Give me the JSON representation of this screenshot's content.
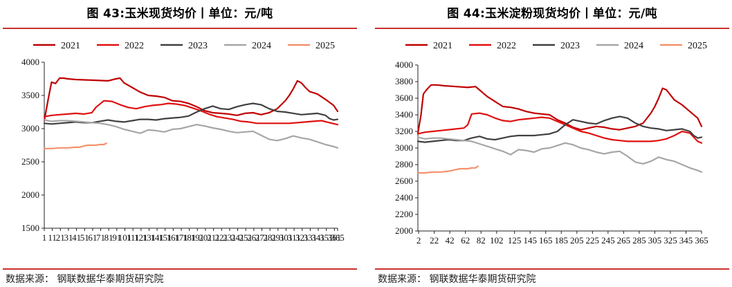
{
  "charts": [
    {
      "title": "图 43:玉米现货均价丨单位：元/吨",
      "source": "数据来源：  钢联数据华泰期货研究院",
      "chart_data": {
        "type": "line",
        "title": "图 43:玉米现货均价丨单位：元/吨",
        "xlabel": "",
        "ylabel": "",
        "xlim": [
          1,
          365
        ],
        "ylim": [
          1500,
          4000
        ],
        "y_ticks": [
          1500,
          2000,
          2500,
          3000,
          3500,
          4000
        ],
        "x_ticks": [
          1,
          11,
          21,
          31,
          41,
          51,
          61,
          71,
          81,
          91,
          101,
          111,
          121,
          131,
          141,
          151,
          161,
          171,
          181,
          191,
          201,
          211,
          221,
          231,
          241,
          251,
          261,
          271,
          281,
          291,
          301,
          311,
          321,
          331,
          341,
          351,
          361,
          365
        ],
        "x_tick_labels_note": "overlapping day-of-year labels (illegible in source)",
        "series": [
          {
            "name": "2021",
            "color": "#c00000",
            "x": [
              1,
              6,
              10,
              15,
              20,
              25,
              30,
              40,
              60,
              80,
              90,
              95,
              100,
              110,
              120,
              130,
              140,
              150,
              160,
              170,
              180,
              190,
              200,
              210,
              220,
              230,
              240,
              250,
              260,
              270,
              280,
              290,
              300,
              305,
              310,
              315,
              320,
              325,
              330,
              340,
              350,
              360,
              365
            ],
            "y": [
              3120,
              3450,
              3700,
              3680,
              3760,
              3760,
              3750,
              3740,
              3730,
              3720,
              3750,
              3760,
              3690,
              3620,
              3550,
              3500,
              3490,
              3470,
              3420,
              3410,
              3380,
              3330,
              3270,
              3240,
              3230,
              3220,
              3200,
              3230,
              3240,
              3210,
              3240,
              3300,
              3420,
              3500,
              3600,
              3720,
              3690,
              3620,
              3560,
              3520,
              3440,
              3350,
              3260
            ]
          },
          {
            "name": "2022",
            "color": "#e01010",
            "x": [
              1,
              10,
              20,
              30,
              40,
              50,
              60,
              65,
              75,
              85,
              95,
              105,
              115,
              125,
              135,
              145,
              155,
              165,
              175,
              185,
              195,
              205,
              215,
              225,
              235,
              245,
              255,
              265,
              275,
              285,
              295,
              305,
              315,
              325,
              335,
              345,
              355,
              365
            ],
            "y": [
              3180,
              3200,
              3210,
              3220,
              3230,
              3220,
              3240,
              3320,
              3420,
              3410,
              3360,
              3320,
              3300,
              3330,
              3350,
              3360,
              3380,
              3370,
              3350,
              3310,
              3270,
              3220,
              3180,
              3160,
              3140,
              3110,
              3100,
              3080,
              3080,
              3080,
              3080,
              3080,
              3090,
              3100,
              3110,
              3120,
              3090,
              3060
            ]
          },
          {
            "name": "2023",
            "color": "#404040",
            "x": [
              1,
              10,
              20,
              30,
              40,
              50,
              60,
              70,
              80,
              90,
              100,
              110,
              120,
              130,
              140,
              150,
              160,
              170,
              180,
              190,
              200,
              210,
              220,
              230,
              240,
              250,
              260,
              270,
              280,
              290,
              300,
              310,
              320,
              330,
              340,
              350,
              355,
              360,
              365
            ],
            "y": [
              3080,
              3070,
              3080,
              3090,
              3100,
              3090,
              3090,
              3110,
              3130,
              3110,
              3100,
              3120,
              3140,
              3140,
              3130,
              3150,
              3160,
              3170,
              3190,
              3250,
              3300,
              3340,
              3300,
              3290,
              3330,
              3360,
              3380,
              3360,
              3300,
              3260,
              3250,
              3230,
              3210,
              3220,
              3230,
              3200,
              3150,
              3130,
              3140
            ]
          },
          {
            "name": "2024",
            "color": "#a6a6a6",
            "x": [
              1,
              10,
              20,
              30,
              40,
              50,
              60,
              70,
              80,
              90,
              100,
              110,
              120,
              130,
              140,
              150,
              160,
              170,
              180,
              190,
              200,
              210,
              220,
              230,
              240,
              250,
              260,
              270,
              280,
              290,
              300,
              310,
              320,
              330,
              340,
              350,
              360,
              365
            ],
            "y": [
              3130,
              3110,
              3120,
              3120,
              3110,
              3100,
              3090,
              3080,
              3060,
              3030,
              2990,
              2960,
              2930,
              2980,
              2970,
              2950,
              2990,
              3000,
              3030,
              3060,
              3040,
              3010,
              2990,
              2960,
              2940,
              2950,
              2960,
              2900,
              2840,
              2820,
              2850,
              2890,
              2860,
              2840,
              2800,
              2760,
              2730,
              2710
            ]
          },
          {
            "name": "2025",
            "color": "#f4916b",
            "x": [
              1,
              10,
              20,
              30,
              40,
              45,
              50,
              55,
              60,
              65,
              70,
              75,
              78
            ],
            "y": [
              2700,
              2700,
              2710,
              2710,
              2720,
              2720,
              2740,
              2750,
              2750,
              2750,
              2760,
              2760,
              2780
            ]
          }
        ]
      }
    },
    {
      "title": "图 44:玉米淀粉现货均价丨单位：元/吨",
      "source": "数据来源：  钢联数据华泰期货研究院",
      "chart_data": {
        "type": "line",
        "title": "图 44:玉米淀粉现货均价丨单位：元/吨",
        "xlabel": "",
        "ylabel": "",
        "xlim": [
          1,
          365
        ],
        "ylim": [
          2000,
          4000
        ],
        "y_ticks": [
          2000,
          2200,
          2400,
          2600,
          2800,
          3000,
          3200,
          3400,
          3600,
          3800,
          4000
        ],
        "x_ticks": [
          2,
          22,
          42,
          62,
          82,
          102,
          125,
          145,
          165,
          185,
          205,
          225,
          245,
          265,
          285,
          305,
          325,
          345,
          365
        ],
        "x_tick_labels": [
          "2",
          "22",
          "42",
          "62",
          "82",
          "102",
          "125",
          "145",
          "165",
          "185",
          "205",
          "225",
          "245",
          "265",
          "285",
          "305",
          "325",
          "345",
          "365"
        ],
        "series": [
          {
            "name": "2021",
            "color": "#c00000",
            "x": [
              1,
              5,
              8,
              12,
              18,
              25,
              35,
              50,
              65,
              75,
              80,
              90,
              100,
              110,
              120,
              130,
              140,
              150,
              160,
              170,
              180,
              190,
              200,
              210,
              220,
              230,
              240,
              250,
              260,
              270,
              280,
              290,
              300,
              305,
              310,
              315,
              320,
              325,
              330,
              340,
              350,
              360,
              365
            ],
            "y": [
              3180,
              3400,
              3650,
              3700,
              3760,
              3760,
              3750,
              3740,
              3730,
              3740,
              3700,
              3620,
              3560,
              3500,
              3490,
              3470,
              3440,
              3420,
              3410,
              3400,
              3340,
              3300,
              3250,
              3220,
              3240,
              3260,
              3250,
              3230,
              3220,
              3240,
              3260,
              3300,
              3420,
              3500,
              3600,
              3720,
              3700,
              3640,
              3580,
              3520,
              3440,
              3360,
              3260
            ]
          },
          {
            "name": "2022",
            "color": "#e01010",
            "x": [
              1,
              10,
              20,
              30,
              40,
              50,
              60,
              65,
              70,
              80,
              90,
              100,
              110,
              120,
              130,
              140,
              150,
              160,
              170,
              180,
              190,
              200,
              210,
              220,
              230,
              240,
              250,
              260,
              270,
              280,
              290,
              300,
              310,
              320,
              330,
              340,
              350,
              360,
              365
            ],
            "y": [
              3170,
              3190,
              3200,
              3210,
              3220,
              3230,
              3240,
              3280,
              3410,
              3420,
              3400,
              3360,
              3330,
              3320,
              3340,
              3350,
              3360,
              3370,
              3360,
              3320,
              3280,
              3240,
              3200,
              3180,
              3150,
              3120,
              3100,
              3090,
              3080,
              3080,
              3080,
              3080,
              3090,
              3110,
              3150,
              3200,
              3180,
              3080,
              3060
            ]
          },
          {
            "name": "2023",
            "color": "#404040",
            "x": [
              1,
              10,
              20,
              30,
              40,
              50,
              60,
              70,
              80,
              90,
              100,
              110,
              120,
              130,
              140,
              150,
              160,
              170,
              180,
              190,
              200,
              210,
              220,
              230,
              240,
              250,
              260,
              270,
              280,
              290,
              300,
              310,
              320,
              330,
              340,
              350,
              355,
              360,
              365
            ],
            "y": [
              3080,
              3070,
              3080,
              3090,
              3100,
              3090,
              3090,
              3120,
              3140,
              3110,
              3100,
              3120,
              3140,
              3150,
              3150,
              3150,
              3160,
              3170,
              3200,
              3280,
              3340,
              3320,
              3300,
              3290,
              3330,
              3360,
              3380,
              3360,
              3300,
              3260,
              3240,
              3230,
              3210,
              3220,
              3230,
              3200,
              3150,
              3120,
              3130
            ]
          },
          {
            "name": "2024",
            "color": "#a6a6a6",
            "x": [
              1,
              10,
              20,
              30,
              40,
              50,
              60,
              70,
              80,
              90,
              100,
              110,
              120,
              130,
              140,
              150,
              160,
              170,
              180,
              190,
              200,
              210,
              220,
              230,
              240,
              250,
              260,
              270,
              280,
              290,
              300,
              310,
              320,
              330,
              340,
              350,
              360,
              365
            ],
            "y": [
              3130,
              3110,
              3120,
              3120,
              3110,
              3100,
              3090,
              3080,
              3050,
              3020,
              2990,
              2960,
              2920,
              2980,
              2970,
              2950,
              2990,
              3000,
              3030,
              3060,
              3040,
              3000,
              2980,
              2950,
              2930,
              2950,
              2960,
              2900,
              2830,
              2810,
              2840,
              2890,
              2860,
              2840,
              2800,
              2760,
              2730,
              2710
            ]
          },
          {
            "name": "2025",
            "color": "#f4916b",
            "x": [
              1,
              10,
              20,
              30,
              40,
              45,
              50,
              55,
              60,
              65,
              70,
              75,
              78
            ],
            "y": [
              2700,
              2700,
              2710,
              2710,
              2720,
              2730,
              2740,
              2750,
              2750,
              2750,
              2760,
              2760,
              2780
            ]
          }
        ]
      }
    }
  ]
}
